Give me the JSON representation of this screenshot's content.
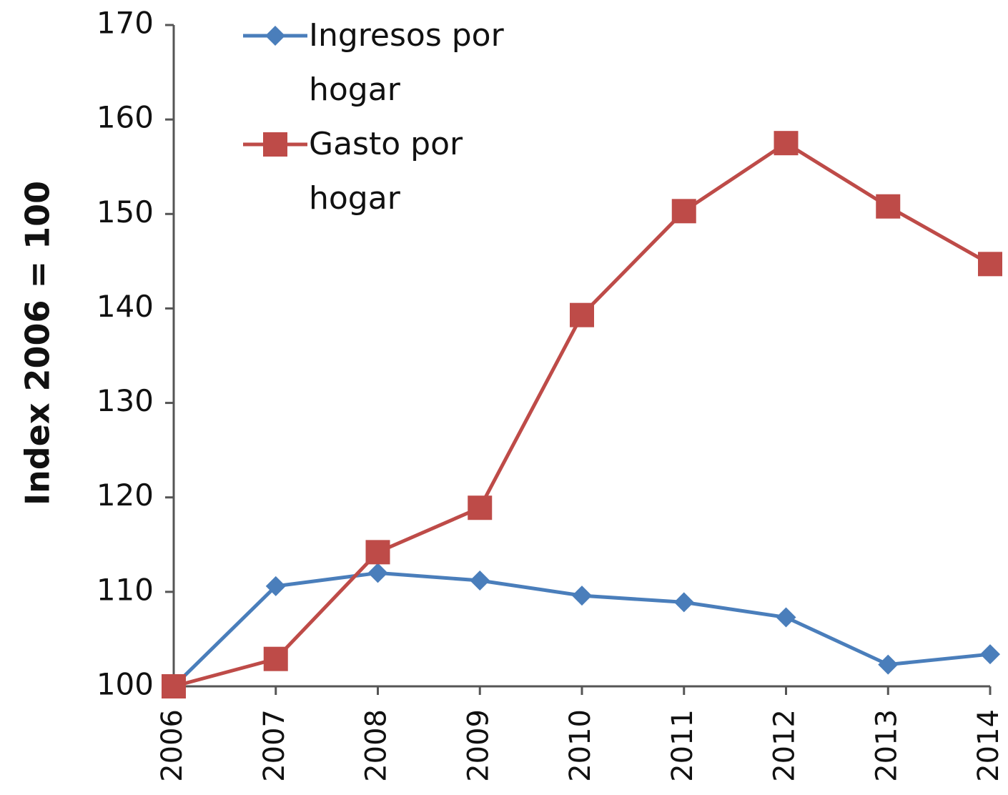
{
  "chart_data": {
    "type": "line",
    "y_label": "Index 2006 = 100",
    "categories": [
      "2006",
      "2007",
      "2008",
      "2009",
      "2010",
      "2011",
      "2012",
      "2013",
      "2014"
    ],
    "series": [
      {
        "name": "Ingresos por hogar",
        "color": "#4a7ebb",
        "marker": "diamond",
        "values": [
          100,
          110.6,
          112.0,
          111.2,
          109.6,
          108.9,
          107.3,
          102.3,
          103.4
        ]
      },
      {
        "name": "Gasto por hogar",
        "color": "#be4b48",
        "marker": "square",
        "values": [
          100,
          102.9,
          114.2,
          118.9,
          139.3,
          150.3,
          157.5,
          150.8,
          144.7
        ]
      }
    ],
    "ylim": [
      100,
      170
    ],
    "yticks": [
      100,
      110,
      120,
      130,
      140,
      150,
      160,
      170
    ],
    "grid": false,
    "legend": "upper left"
  }
}
